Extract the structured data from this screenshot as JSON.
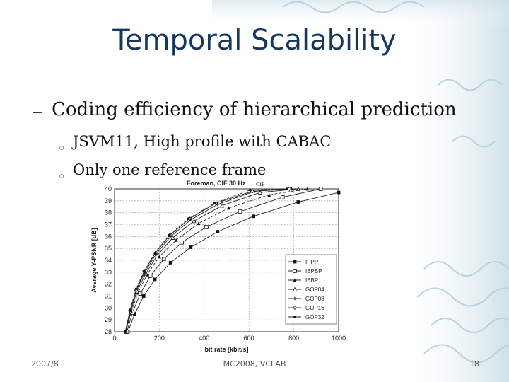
{
  "slide": {
    "title": "Temporal Scalability",
    "bullet": "Coding efficiency of hierarchical prediction",
    "sub_bullets": [
      "JSVM11, High profile with CABAC",
      "Only one reference frame"
    ],
    "footer_left": "2007/8",
    "footer_center": "MC2008, VCLAB",
    "footer_right": "18"
  },
  "chart_data": {
    "type": "line",
    "title": "Foreman, CIF 30 Hz",
    "title_annotation": "CIF",
    "xlabel": "bit rate [kbit/s]",
    "ylabel": "Average Y-PSNR [dB]",
    "xlim": [
      0,
      1000
    ],
    "ylim": [
      28,
      40
    ],
    "xticks": [
      0,
      200,
      400,
      600,
      800,
      1000
    ],
    "yticks": [
      28,
      29,
      30,
      31,
      32,
      33,
      34,
      35,
      36,
      37,
      38,
      39,
      40
    ],
    "grid": true,
    "legend_position": "bottom-right",
    "series": [
      {
        "name": "IPPP",
        "marker": "square",
        "x": [
          60,
          90,
          130,
          180,
          250,
          340,
          460,
          620,
          820,
          1000
        ],
        "y": [
          28.0,
          29.5,
          31.0,
          32.4,
          33.8,
          35.1,
          36.4,
          37.7,
          38.9,
          39.7
        ]
      },
      {
        "name": "IBPBP",
        "marker": "square-open",
        "x": [
          55,
          80,
          115,
          160,
          220,
          300,
          410,
          560,
          750,
          920
        ],
        "y": [
          28.0,
          29.6,
          31.2,
          32.7,
          34.1,
          35.5,
          36.8,
          38.1,
          39.3,
          40.0
        ]
      },
      {
        "name": "IBBP",
        "marker": "triangle",
        "x": [
          50,
          75,
          105,
          145,
          200,
          275,
          375,
          510,
          690,
          860
        ],
        "y": [
          28.0,
          29.7,
          31.3,
          32.8,
          34.3,
          35.7,
          37.1,
          38.4,
          39.5,
          40.0
        ]
      },
      {
        "name": "GOP04",
        "marker": "triangle-open",
        "x": [
          50,
          72,
          100,
          140,
          190,
          260,
          355,
          480,
          650,
          820
        ],
        "y": [
          28.0,
          29.7,
          31.4,
          32.9,
          34.4,
          35.9,
          37.3,
          38.6,
          39.7,
          40.0
        ]
      },
      {
        "name": "GOP08",
        "marker": "cross",
        "x": [
          48,
          70,
          98,
          135,
          185,
          250,
          340,
          460,
          625,
          790
        ],
        "y": [
          28.0,
          29.8,
          31.5,
          33.0,
          34.5,
          36.0,
          37.4,
          38.7,
          39.8,
          40.0
        ]
      },
      {
        "name": "GOP16",
        "marker": "diamond-open",
        "x": [
          48,
          70,
          97,
          133,
          182,
          246,
          335,
          452,
          615,
          780
        ],
        "y": [
          28.0,
          29.8,
          31.5,
          33.1,
          34.6,
          36.1,
          37.5,
          38.8,
          39.8,
          40.0
        ]
      },
      {
        "name": "GOP32",
        "marker": "dot",
        "x": [
          48,
          69,
          96,
          132,
          180,
          243,
          330,
          446,
          605,
          770
        ],
        "y": [
          28.0,
          29.8,
          31.6,
          33.1,
          34.6,
          36.1,
          37.5,
          38.8,
          39.9,
          40.0
        ]
      }
    ]
  },
  "colors": {
    "title": "#17365d",
    "text": "#111111",
    "footer": "#555555",
    "ornament": "#c9dde6"
  }
}
